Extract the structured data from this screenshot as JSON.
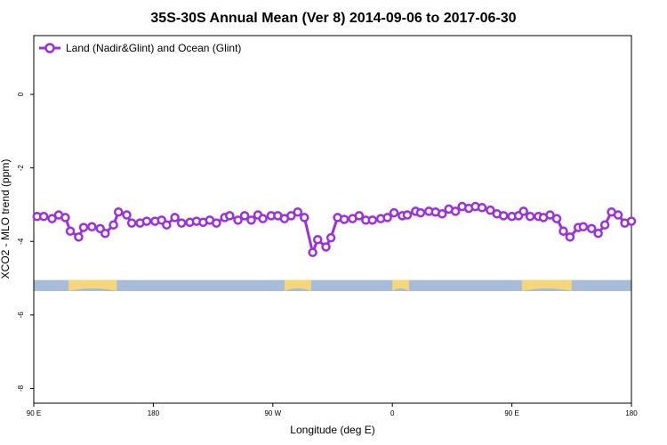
{
  "chart_data": {
    "type": "line",
    "title": "35S-30S Annual Mean (Ver 8)   2014-09-06 to 2017-06-30",
    "xlabel": "Longitude (deg E)",
    "ylabel": "XCO2 - MLO trend (ppm)",
    "xlim": [
      90,
      450
    ],
    "ylim": [
      -8.4,
      1.6
    ],
    "x_ticks": [
      {
        "value": 90,
        "label": "90 E"
      },
      {
        "value": 162,
        "label": "180"
      },
      {
        "value": 234,
        "label": "90 W"
      },
      {
        "value": 306,
        "label": "0"
      },
      {
        "value": 378,
        "label": "90 E"
      },
      {
        "value": 450,
        "label": "180"
      }
    ],
    "y_ticks": [
      {
        "value": 0,
        "label": "0"
      },
      {
        "value": -2,
        "label": "-2"
      },
      {
        "value": -4,
        "label": "-4"
      },
      {
        "value": -6,
        "label": "-6"
      },
      {
        "value": -8,
        "label": "-8"
      }
    ],
    "legend": {
      "position": "top-left"
    },
    "colors": {
      "series": "#9b30e0",
      "ocean": "#a7bcd8",
      "land": "#f5d77a"
    },
    "series": [
      {
        "name": "Land (Nadir&Glint) and Ocean (Glint)",
        "x": [
          92,
          96,
          101,
          105,
          109,
          112,
          117,
          120,
          125,
          130,
          133,
          138,
          141,
          146,
          149,
          154,
          158,
          163,
          167,
          170,
          175,
          179,
          184,
          188,
          192,
          196,
          200,
          205,
          208,
          213,
          217,
          221,
          225,
          228,
          233,
          237,
          241,
          245,
          249,
          253,
          258,
          261,
          266,
          269,
          273,
          277,
          282,
          286,
          290,
          294,
          299,
          303,
          307,
          312,
          315,
          320,
          323,
          328,
          332,
          336,
          340,
          344,
          348,
          352,
          356,
          360,
          365,
          369,
          373,
          378,
          382,
          385,
          389,
          394,
          397,
          401,
          405,
          409,
          413,
          418,
          421,
          426,
          430,
          434,
          438,
          442,
          446,
          450
        ],
        "y": [
          -3.32,
          -3.32,
          -3.38,
          -3.28,
          -3.35,
          -3.72,
          -3.88,
          -3.62,
          -3.6,
          -3.65,
          -3.78,
          -3.55,
          -3.2,
          -3.28,
          -3.5,
          -3.5,
          -3.45,
          -3.45,
          -3.42,
          -3.55,
          -3.35,
          -3.5,
          -3.48,
          -3.45,
          -3.48,
          -3.42,
          -3.5,
          -3.35,
          -3.3,
          -3.42,
          -3.3,
          -3.42,
          -3.28,
          -3.38,
          -3.3,
          -3.3,
          -3.38,
          -3.3,
          -3.2,
          -3.35,
          -4.3,
          -3.95,
          -4.15,
          -3.9,
          -3.35,
          -3.4,
          -3.38,
          -3.3,
          -3.42,
          -3.42,
          -3.38,
          -3.35,
          -3.22,
          -3.3,
          -3.28,
          -3.18,
          -3.22,
          -3.18,
          -3.2,
          -3.25,
          -3.12,
          -3.18,
          -3.05,
          -3.1,
          -3.05,
          -3.08,
          -3.15,
          -3.25,
          -3.3,
          -3.32,
          -3.3,
          -3.18,
          -3.32,
          -3.32,
          -3.35,
          -3.28,
          -3.38,
          -3.72,
          -3.88,
          -3.62,
          -3.6,
          -3.65,
          -3.78,
          -3.55,
          -3.2,
          -3.28,
          -3.5,
          -3.45
        ]
      }
    ],
    "surface_strip": {
      "y_range": [
        -5.35,
        -5.05
      ],
      "land_segments": [
        [
          111,
          140
        ],
        [
          241,
          257
        ],
        [
          306,
          316
        ],
        [
          384,
          414
        ]
      ]
    }
  }
}
